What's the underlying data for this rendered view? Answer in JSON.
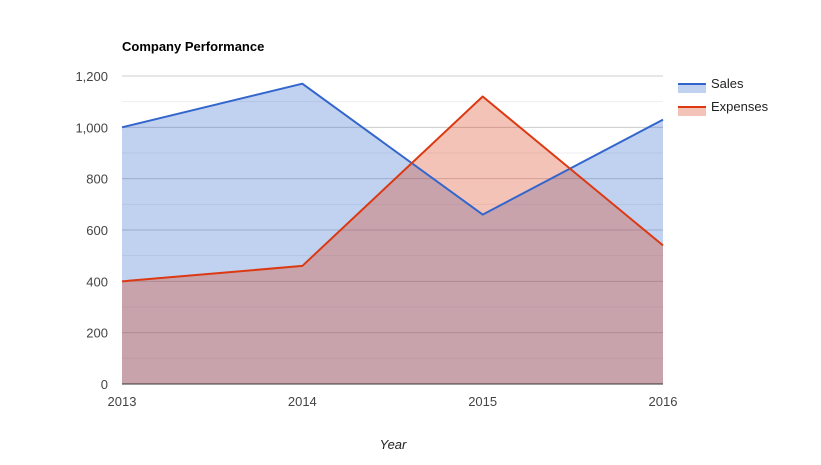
{
  "chart_data": {
    "type": "area",
    "title": "Company Performance",
    "xlabel": "Year",
    "ylabel": "",
    "categories": [
      "2013",
      "2014",
      "2015",
      "2016"
    ],
    "ylim": [
      0,
      1200
    ],
    "yticks": [
      0,
      200,
      400,
      600,
      800,
      1000,
      1200
    ],
    "ytick_labels": [
      "0",
      "200",
      "400",
      "600",
      "800",
      "1,000",
      "1,200"
    ],
    "grid": true,
    "legend_position": "right",
    "series": [
      {
        "name": "Sales",
        "values": [
          1000,
          1170,
          660,
          1030
        ],
        "line_color": "#3366cc",
        "fill_color": "#3366cc",
        "fill_opacity": 0.3
      },
      {
        "name": "Expenses",
        "values": [
          400,
          460,
          1120,
          540
        ],
        "line_color": "#dc3912",
        "fill_color": "#dc3912",
        "fill_opacity": 0.3
      }
    ]
  }
}
